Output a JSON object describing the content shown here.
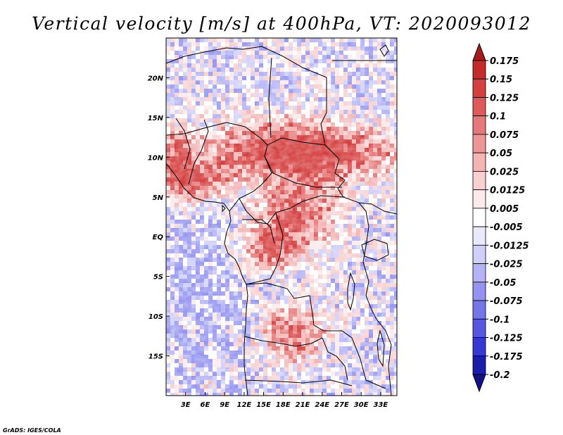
{
  "chart_data": {
    "type": "heatmap",
    "title": "Vertical velocity [m/s] at 400hPa, VT: 2020093012",
    "variable": "Vertical velocity",
    "units": "m/s",
    "level": "400hPa",
    "valid_time": "2020093012",
    "xlim": [
      0,
      35.5
    ],
    "ylim": [
      -20,
      25
    ],
    "x_ticks": [
      3,
      6,
      9,
      12,
      15,
      18,
      21,
      24,
      27,
      30,
      33
    ],
    "x_tick_labels": [
      "3E",
      "6E",
      "9E",
      "12E",
      "15E",
      "18E",
      "21E",
      "24E",
      "27E",
      "30E",
      "33E"
    ],
    "y_ticks": [
      20,
      15,
      10,
      5,
      0,
      -5,
      -10,
      -15
    ],
    "y_tick_labels": [
      "20N",
      "15N",
      "10N",
      "5N",
      "EQ",
      "5S",
      "10S",
      "15S"
    ],
    "colorbar_levels": [
      "0.175",
      "0.15",
      "0.125",
      "0.1",
      "0.075",
      "0.05",
      "0.025",
      "0.0125",
      "0.005",
      "-0.005",
      "-0.0125",
      "-0.025",
      "-0.05",
      "-0.075",
      "-0.1",
      "-0.125",
      "-0.175",
      "-0.2"
    ],
    "colorbar_colors": [
      "#a61c1c",
      "#c42b2b",
      "#d43f3f",
      "#de5a5a",
      "#e57878",
      "#ec9696",
      "#f3b4b4",
      "#f8d0d0",
      "#fce9e9",
      "#ffffff",
      "#e9e9fc",
      "#cfcffa",
      "#b3b3f6",
      "#9494f0",
      "#7676e8",
      "#5656df",
      "#3737d2",
      "#1c1caa",
      "#121285"
    ]
  },
  "credit": "GrADS: IGES/COLA"
}
